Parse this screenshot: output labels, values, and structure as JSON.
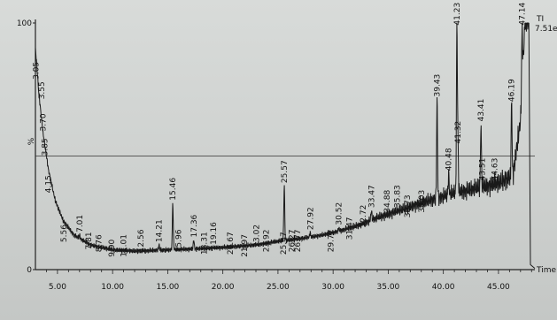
{
  "chart_data": {
    "type": "line",
    "title": "",
    "xlabel": "Time",
    "ylabel": "%",
    "xlim": [
      3,
      48.3
    ],
    "ylim": [
      0,
      100
    ],
    "grid": false,
    "y_ticks": [
      {
        "value": 0,
        "label": "0"
      },
      {
        "value": 100,
        "label": "100"
      }
    ],
    "x_ticks": [
      {
        "value": 5,
        "label": "5.00"
      },
      {
        "value": 10,
        "label": "10.00"
      },
      {
        "value": 15,
        "label": "15.00"
      },
      {
        "value": 20,
        "label": "20.00"
      },
      {
        "value": 25,
        "label": "25.00"
      },
      {
        "value": 30,
        "label": "30.00"
      },
      {
        "value": 35,
        "label": "35.00"
      },
      {
        "value": 40,
        "label": "40.00"
      },
      {
        "value": 45,
        "label": "45.00"
      }
    ],
    "corner_labels": [
      "TI",
      "7.51e"
    ],
    "reference_line_y": 46,
    "peaks": [
      {
        "rt": 3.05,
        "label": "3.05",
        "height": 76
      },
      {
        "rt": 3.55,
        "label": "3.55",
        "height": 68
      },
      {
        "rt": 3.7,
        "label": "3.70",
        "height": 55
      },
      {
        "rt": 3.85,
        "label": "3.85",
        "height": 45
      },
      {
        "rt": 4.15,
        "label": "4.15",
        "height": 30
      },
      {
        "rt": 5.56,
        "label": "5.56",
        "height": 10
      },
      {
        "rt": 7.01,
        "label": "7.01",
        "height": 14
      },
      {
        "rt": 7.81,
        "label": "7.81",
        "height": 7
      },
      {
        "rt": 8.76,
        "label": "8.76",
        "height": 6
      },
      {
        "rt": 9.9,
        "label": "9.90",
        "height": 4
      },
      {
        "rt": 11.01,
        "label": "11.01",
        "height": 4
      },
      {
        "rt": 12.56,
        "label": "12.56",
        "height": 6
      },
      {
        "rt": 14.21,
        "label": "14.21",
        "height": 10
      },
      {
        "rt": 15.46,
        "label": "15.46",
        "height": 27
      },
      {
        "rt": 15.96,
        "label": "15.96",
        "height": 6
      },
      {
        "rt": 17.36,
        "label": "17.36",
        "height": 12
      },
      {
        "rt": 18.31,
        "label": "18.31",
        "height": 5
      },
      {
        "rt": 19.16,
        "label": "19.16",
        "height": 9
      },
      {
        "rt": 20.67,
        "label": "20.67",
        "height": 5
      },
      {
        "rt": 21.97,
        "label": "21.97",
        "height": 4
      },
      {
        "rt": 23.02,
        "label": "23.02",
        "height": 8
      },
      {
        "rt": 23.92,
        "label": "23.92",
        "height": 6
      },
      {
        "rt": 25.47,
        "label": "25.47",
        "height": 5
      },
      {
        "rt": 25.57,
        "label": "25.57",
        "height": 34
      },
      {
        "rt": 26.27,
        "label": "26.27",
        "height": 6
      },
      {
        "rt": 26.77,
        "label": "26.77",
        "height": 6
      },
      {
        "rt": 27.92,
        "label": "27.92",
        "height": 15
      },
      {
        "rt": 29.77,
        "label": "29.77",
        "height": 6
      },
      {
        "rt": 30.52,
        "label": "30.52",
        "height": 17
      },
      {
        "rt": 31.47,
        "label": "31.47",
        "height": 11
      },
      {
        "rt": 32.72,
        "label": "32.72",
        "height": 16
      },
      {
        "rt": 33.47,
        "label": "33.47",
        "height": 24
      },
      {
        "rt": 34.88,
        "label": "34.88",
        "height": 22
      },
      {
        "rt": 35.83,
        "label": "35.83",
        "height": 24
      },
      {
        "rt": 36.73,
        "label": "36.73",
        "height": 20
      },
      {
        "rt": 38.03,
        "label": "38.03",
        "height": 22
      },
      {
        "rt": 39.43,
        "label": "39.43",
        "height": 69
      },
      {
        "rt": 40.48,
        "label": "40.48",
        "height": 39
      },
      {
        "rt": 41.23,
        "label": "41.23",
        "height": 98
      },
      {
        "rt": 41.32,
        "label": "41.32",
        "height": 50
      },
      {
        "rt": 43.41,
        "label": "43.41",
        "height": 59
      },
      {
        "rt": 43.51,
        "label": "43.51",
        "height": 35
      },
      {
        "rt": 44.63,
        "label": "44.63",
        "height": 35
      },
      {
        "rt": 46.19,
        "label": "46.19",
        "height": 67
      },
      {
        "rt": 47.14,
        "label": "47.14",
        "height": 98
      }
    ],
    "baseline": [
      [
        3.0,
        90
      ],
      [
        3.3,
        72
      ],
      [
        3.7,
        55
      ],
      [
        4.2,
        40
      ],
      [
        4.8,
        28
      ],
      [
        5.5,
        20
      ],
      [
        6.5,
        14
      ],
      [
        8,
        10
      ],
      [
        10,
        8
      ],
      [
        12,
        7.5
      ],
      [
        15,
        8
      ],
      [
        18,
        8.5
      ],
      [
        20,
        9
      ],
      [
        23,
        10
      ],
      [
        25,
        11.5
      ],
      [
        27,
        12.5
      ],
      [
        29,
        14
      ],
      [
        30,
        15
      ],
      [
        32,
        17.5
      ],
      [
        34,
        21
      ],
      [
        36,
        24
      ],
      [
        38,
        27
      ],
      [
        39.5,
        29
      ],
      [
        41,
        31
      ],
      [
        43,
        33
      ],
      [
        45,
        35
      ],
      [
        46.3,
        38
      ],
      [
        47,
        60
      ],
      [
        47.4,
        100
      ],
      [
        47.7,
        100
      ]
    ]
  }
}
